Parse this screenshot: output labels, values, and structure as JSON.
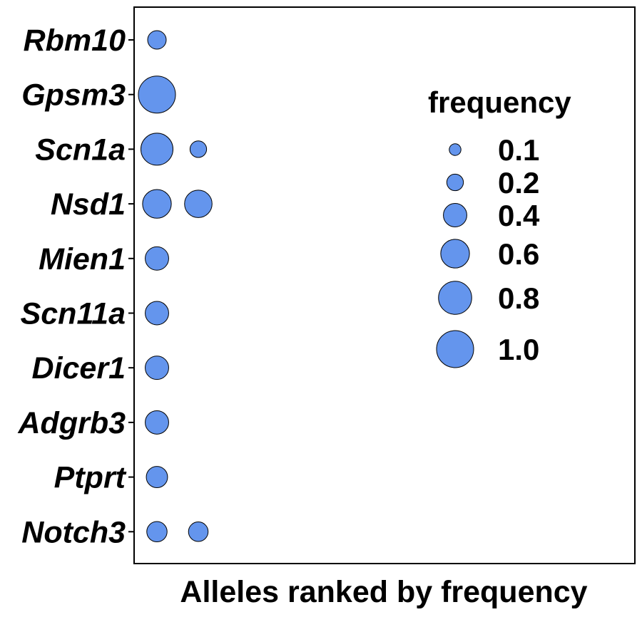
{
  "chart_data": {
    "type": "scatter",
    "title": "",
    "xlabel": "Alleles ranked by frequency",
    "ylabel": "",
    "categories": [
      "Rbm10",
      "Gpsm3",
      "Scn1a",
      "Nsd1",
      "Mien1",
      "Scn11a",
      "Dicer1",
      "Adgrb3",
      "Ptprt",
      "Notch3"
    ],
    "points": [
      {
        "gene": "Rbm10",
        "rank": 1,
        "frequency": 0.25
      },
      {
        "gene": "Gpsm3",
        "rank": 1,
        "frequency": 1.0
      },
      {
        "gene": "Scn1a",
        "rank": 1,
        "frequency": 0.75
      },
      {
        "gene": "Scn1a",
        "rank": 2,
        "frequency": 0.2
      },
      {
        "gene": "Nsd1",
        "rank": 1,
        "frequency": 0.6
      },
      {
        "gene": "Nsd1",
        "rank": 2,
        "frequency": 0.55
      },
      {
        "gene": "Mien1",
        "rank": 1,
        "frequency": 0.4
      },
      {
        "gene": "Scn11a",
        "rank": 1,
        "frequency": 0.4
      },
      {
        "gene": "Dicer1",
        "rank": 1,
        "frequency": 0.4
      },
      {
        "gene": "Adgrb3",
        "rank": 1,
        "frequency": 0.4
      },
      {
        "gene": "Ptprt",
        "rank": 1,
        "frequency": 0.33
      },
      {
        "gene": "Notch3",
        "rank": 1,
        "frequency": 0.3
      },
      {
        "gene": "Notch3",
        "rank": 2,
        "frequency": 0.28
      }
    ],
    "legend": {
      "title": "frequency",
      "placement": "right",
      "values": [
        0.1,
        0.2,
        0.4,
        0.6,
        0.8,
        1.0
      ],
      "labels": [
        "0.1",
        "0.2",
        "0.4",
        "0.6",
        "0.8",
        "1.0"
      ]
    },
    "grid": false,
    "point_color": "#6495ED"
  }
}
